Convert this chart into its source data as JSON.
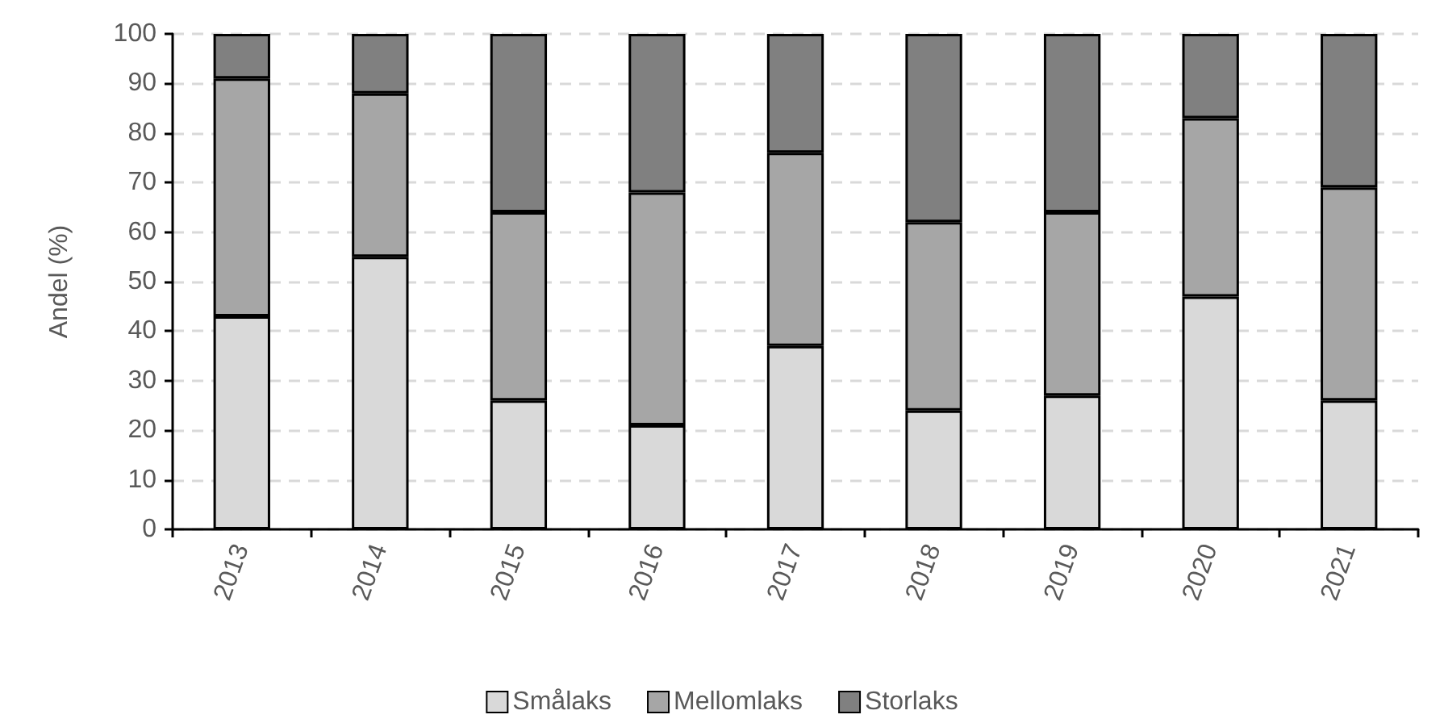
{
  "chart_data": {
    "type": "bar",
    "stacked": true,
    "ylabel": "Andel (%)",
    "categories": [
      "2013",
      "2014",
      "2015",
      "2016",
      "2017",
      "2018",
      "2019",
      "2020",
      "2021"
    ],
    "series": [
      {
        "name": "Smålaks",
        "color": "#d9d9d9",
        "values": [
          43,
          55,
          26,
          21,
          37,
          24,
          27,
          47,
          26
        ]
      },
      {
        "name": "Mellomlaks",
        "color": "#a6a6a6",
        "values": [
          48,
          33,
          38,
          47,
          39,
          38,
          37,
          36,
          43
        ]
      },
      {
        "name": "Storlaks",
        "color": "#808080",
        "values": [
          9,
          12,
          36,
          32,
          24,
          38,
          36,
          17,
          31
        ]
      }
    ],
    "ylim": [
      0,
      100
    ],
    "yticks": [
      0,
      10,
      20,
      30,
      40,
      50,
      60,
      70,
      80,
      90,
      100
    ],
    "grid": "y",
    "legend": "bottom"
  }
}
